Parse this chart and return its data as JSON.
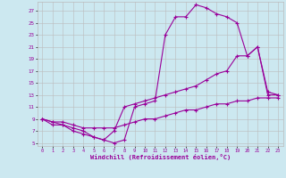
{
  "xlabel": "Windchill (Refroidissement éolien,°C)",
  "bg_color": "#cce8f0",
  "line_color": "#990099",
  "grid_color": "#bbbbbb",
  "xlim": [
    -0.5,
    23.5
  ],
  "ylim": [
    4.5,
    28.5
  ],
  "yticks": [
    5,
    7,
    9,
    11,
    13,
    15,
    17,
    19,
    21,
    23,
    25,
    27
  ],
  "xticks": [
    0,
    1,
    2,
    3,
    4,
    5,
    6,
    7,
    8,
    9,
    10,
    11,
    12,
    13,
    14,
    15,
    16,
    17,
    18,
    19,
    20,
    21,
    22,
    23
  ],
  "line1_x": [
    0,
    1,
    2,
    3,
    4,
    5,
    6,
    7,
    8,
    9,
    10,
    11,
    12,
    13,
    14,
    15,
    16,
    17,
    18,
    19,
    20,
    21,
    22,
    23
  ],
  "line1_y": [
    9,
    8,
    8,
    7,
    6.5,
    6,
    5.5,
    5,
    5.5,
    11,
    11.5,
    12,
    23,
    26,
    26,
    28,
    27.5,
    26.5,
    26,
    25,
    19.5,
    21,
    13,
    13
  ],
  "line2_x": [
    0,
    1,
    2,
    3,
    4,
    5,
    6,
    7,
    8,
    9,
    10,
    11,
    12,
    13,
    14,
    15,
    16,
    17,
    18,
    19,
    20,
    21,
    22,
    23
  ],
  "line2_y": [
    9,
    8.5,
    8,
    7.5,
    7,
    6,
    5.5,
    7,
    11,
    11.5,
    12,
    12.5,
    13,
    13.5,
    14,
    14.5,
    15.5,
    16.5,
    17,
    19.5,
    19.5,
    21,
    13.5,
    13
  ],
  "line3_x": [
    0,
    1,
    2,
    3,
    4,
    5,
    6,
    7,
    8,
    9,
    10,
    11,
    12,
    13,
    14,
    15,
    16,
    17,
    18,
    19,
    20,
    21,
    22,
    23
  ],
  "line3_y": [
    9,
    8.5,
    8.5,
    8,
    7.5,
    7.5,
    7.5,
    7.5,
    8,
    8.5,
    9,
    9,
    9.5,
    10,
    10.5,
    10.5,
    11,
    11.5,
    11.5,
    12,
    12,
    12.5,
    12.5,
    12.5
  ]
}
